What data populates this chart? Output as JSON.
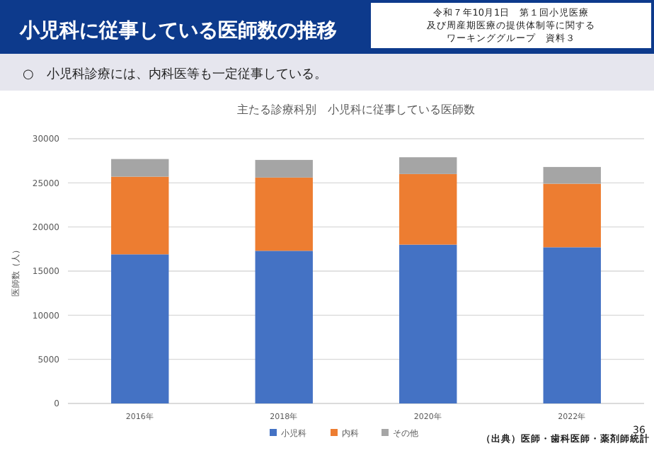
{
  "chart_data": {
    "type": "bar",
    "title": "小児科に従事している医師数の推移",
    "subtitle": "主たる診療科別　小児科に従事している医師数",
    "ylabel": "医師数（人）",
    "categories": [
      "2016年",
      "2018年",
      "2020年",
      "2022年"
    ],
    "series": [
      {
        "name": "小児科",
        "color": "#4472c4",
        "values": [
          16900,
          17300,
          18000,
          17700
        ]
      },
      {
        "name": "内科",
        "color": "#ed7d31",
        "values": [
          8800,
          8300,
          8000,
          7200
        ]
      },
      {
        "name": "その他",
        "color": "#a5a5a5",
        "values": [
          2000,
          2000,
          1900,
          1900
        ]
      }
    ],
    "stacked": true,
    "ylim": [
      0,
      30000
    ],
    "yticks": [
      0,
      5000,
      10000,
      15000,
      20000,
      25000,
      30000
    ],
    "grid": "y",
    "legend": "bottom",
    "annotations": [
      "○　小児科診療には、内科医等も一定従事している。",
      "令和７年10月1日　第１回小児医療及び周産期医療の提供体制等に関する",
      "ワーキンググループ　資料３",
      "（出典）医師・歯科医師・薬剤師統計",
      "36"
    ]
  }
}
